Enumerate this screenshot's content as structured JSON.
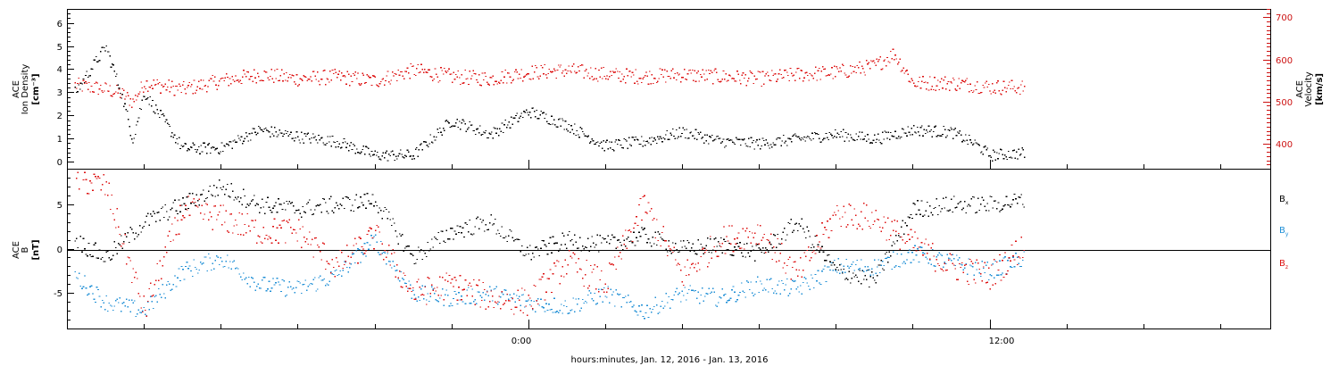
{
  "colors": {
    "black": "#000000",
    "red": "#dd1111",
    "blue": "#1f8fd6"
  },
  "chart_data": [
    {
      "type": "scatter",
      "panel": "plasma",
      "ylabel_left": [
        "ACE",
        "Ion Density",
        "[cm⁻³]"
      ],
      "ylabel_right": [
        "ACE",
        "Velocity",
        "[km/s]"
      ],
      "ylim_left": [
        -0.3,
        6.6
      ],
      "ylim_right": [
        340,
        720
      ],
      "yticks_left": [
        "0",
        "1",
        "2",
        "3",
        "4",
        "5",
        "6"
      ],
      "yticks_right": [
        "400",
        "500",
        "600",
        "700"
      ],
      "x_hours": [
        -12.0,
        19.3
      ],
      "series": [
        {
          "axis": "left",
          "color": "black",
          "x": [
            -11.8,
            -11.0,
            -10.6,
            -10.3,
            -10.0,
            -9.0,
            -8.0,
            -7.0,
            -6.0,
            -5.0,
            -4.0,
            -3.0,
            -2.0,
            -1.0,
            0.0,
            1.0,
            2.0,
            3.0,
            4.0,
            5.0,
            6.0,
            7.0,
            8.0,
            9.0,
            10.0,
            11.0,
            11.6,
            12.0,
            12.9
          ],
          "y": [
            3.0,
            5.0,
            3.0,
            1.0,
            3.0,
            0.6,
            0.6,
            1.4,
            1.1,
            0.9,
            0.3,
            0.3,
            1.8,
            1.2,
            2.2,
            1.6,
            0.7,
            0.9,
            1.3,
            0.9,
            0.8,
            1.0,
            1.2,
            1.0,
            1.4,
            1.3,
            0.8,
            0.3,
            0.4
          ]
        },
        {
          "axis": "right",
          "color": "red",
          "x": [
            -11.8,
            -11.0,
            -10.6,
            -10.3,
            -10.0,
            -9.0,
            -8.0,
            -7.0,
            -6.0,
            -5.0,
            -4.0,
            -3.0,
            -2.0,
            -1.0,
            0.0,
            1.0,
            2.0,
            3.0,
            4.0,
            5.0,
            6.0,
            7.0,
            8.0,
            9.0,
            9.5,
            10.0,
            11.0,
            11.6,
            12.0,
            12.9
          ],
          "y": [
            540,
            530,
            520,
            500,
            545,
            530,
            550,
            565,
            555,
            560,
            550,
            575,
            560,
            555,
            570,
            575,
            565,
            560,
            565,
            560,
            555,
            565,
            570,
            585,
            615,
            545,
            545,
            540,
            535,
            535
          ]
        }
      ]
    },
    {
      "type": "scatter",
      "panel": "magnetic_field",
      "ylabel_left": [
        "ACE",
        "B",
        "[nT]"
      ],
      "ylim": [
        -9,
        9
      ],
      "yticks": [
        "-5",
        "0",
        "5"
      ],
      "zero_line": true,
      "x_hours": [
        -12.0,
        19.3
      ],
      "xticks": [
        "0:00",
        "12:00"
      ],
      "xlabel": "hours:minutes, Jan. 12, 2016 - Jan. 13, 2016",
      "legend": [
        "B",
        "B",
        "B"
      ],
      "legend_sub": [
        "x",
        "y",
        "z"
      ],
      "series": [
        {
          "name": "Bx",
          "color": "black",
          "x": [
            -11.8,
            -11.0,
            -10.0,
            -9.0,
            -8.0,
            -7.0,
            -6.0,
            -5.0,
            -4.0,
            -3.0,
            -2.0,
            -1.0,
            0.0,
            1.0,
            2.0,
            3.0,
            4.0,
            5.0,
            6.0,
            7.0,
            8.0,
            9.0,
            10.0,
            11.0,
            12.0,
            12.9
          ],
          "y": [
            1.0,
            -1.0,
            3.0,
            5.0,
            7.0,
            5.0,
            4.5,
            5.0,
            5.5,
            -1.0,
            2.0,
            3.0,
            -0.5,
            1.0,
            0.5,
            1.5,
            0.0,
            0.5,
            -0.5,
            3.0,
            -2.5,
            -3.5,
            4.5,
            5.0,
            5.0,
            5.5
          ]
        },
        {
          "name": "By",
          "color": "blue",
          "x": [
            -11.8,
            -11.0,
            -10.0,
            -9.0,
            -8.0,
            -7.0,
            -6.0,
            -5.0,
            -4.0,
            -3.0,
            -2.0,
            -1.0,
            0.0,
            1.0,
            2.0,
            3.0,
            4.0,
            5.0,
            6.0,
            7.0,
            8.0,
            9.0,
            10.0,
            11.0,
            12.0,
            12.9
          ],
          "y": [
            -3.0,
            -6.0,
            -7.0,
            -2.5,
            -1.0,
            -4.0,
            -4.5,
            -3.0,
            1.0,
            -5.0,
            -5.5,
            -5.0,
            -6.0,
            -6.5,
            -5.0,
            -7.0,
            -5.0,
            -5.5,
            -4.0,
            -4.5,
            -2.0,
            -2.0,
            -0.5,
            -1.5,
            -2.5,
            -1.0
          ]
        },
        {
          "name": "Bz",
          "color": "red",
          "x": [
            -11.8,
            -11.0,
            -10.0,
            -9.0,
            -8.0,
            -7.0,
            -6.0,
            -5.0,
            -4.0,
            -3.0,
            -2.0,
            -1.0,
            0.0,
            1.0,
            2.0,
            3.0,
            4.0,
            5.0,
            6.0,
            7.0,
            8.0,
            9.0,
            10.0,
            11.0,
            12.0,
            12.9
          ],
          "y": [
            8.0,
            7.0,
            -7.0,
            4.5,
            3.5,
            2.0,
            2.0,
            -2.0,
            1.5,
            -5.0,
            -4.0,
            -5.5,
            -6.0,
            -1.5,
            -4.0,
            5.0,
            -3.0,
            1.0,
            2.0,
            -3.0,
            4.0,
            3.5,
            0.5,
            -2.0,
            -3.0,
            0.5
          ]
        }
      ]
    }
  ]
}
